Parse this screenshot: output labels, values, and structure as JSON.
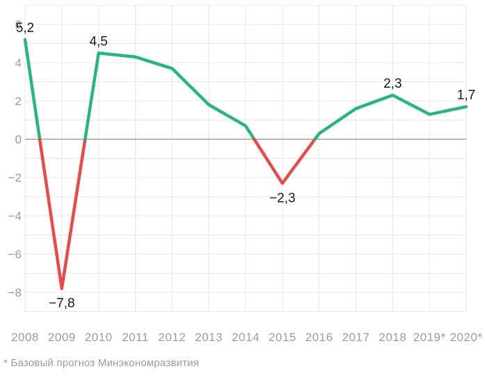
{
  "chart_data": {
    "type": "line",
    "title": "",
    "categories": [
      "2008",
      "2009",
      "2010",
      "2011",
      "2012",
      "2013",
      "2014",
      "2015",
      "2016",
      "2017",
      "2018",
      "2019*",
      "2020*"
    ],
    "values": [
      5.2,
      -7.8,
      4.5,
      4.3,
      3.7,
      1.8,
      0.7,
      -2.3,
      0.3,
      1.6,
      2.3,
      1.3,
      1.7
    ],
    "ylim": [
      -9,
      7
    ],
    "grid_step": 1,
    "grid": true,
    "y_ticks": [
      {
        "value": 6,
        "label": "6"
      },
      {
        "value": 4,
        "label": "4"
      },
      {
        "value": 2,
        "label": "2"
      },
      {
        "value": 0,
        "label": "0"
      },
      {
        "value": -2,
        "label": "−2"
      },
      {
        "value": -4,
        "label": "−4"
      },
      {
        "value": -6,
        "label": "−6"
      },
      {
        "value": -8,
        "label": "−8"
      }
    ],
    "point_labels": [
      {
        "index": 0,
        "text": "5,2",
        "side": "above"
      },
      {
        "index": 1,
        "text": "−7,8",
        "side": "below"
      },
      {
        "index": 2,
        "text": "4,5",
        "side": "above"
      },
      {
        "index": 7,
        "text": "−2,3",
        "side": "below"
      },
      {
        "index": 10,
        "text": "2,3",
        "side": "above"
      },
      {
        "index": 12,
        "text": "1,7",
        "side": "above"
      }
    ],
    "colors": {
      "positive": "#26b77e",
      "negative": "#e74b48",
      "grid_line": "#e7e7e7",
      "zero_line": "#8f8f8f",
      "tick_label": "#9b9b9b",
      "data_label": "#1a1a1a"
    }
  },
  "footnote": "* Базовый прогноз Минэкономразвития"
}
